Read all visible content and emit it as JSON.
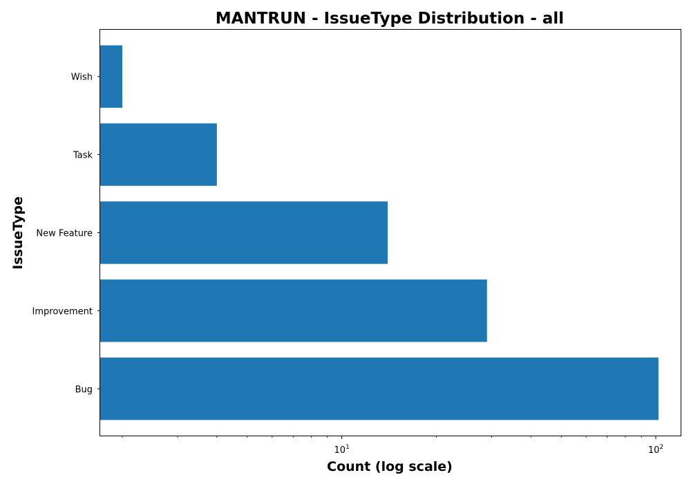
{
  "chart_data": {
    "type": "bar",
    "orientation": "horizontal",
    "title": "MANTRUN - IssueType Distribution - all",
    "xlabel": "Count (log scale)",
    "ylabel": "IssueType",
    "x_scale": "log",
    "xlim": [
      1.7,
      120
    ],
    "x_ticks": [
      {
        "base": "10",
        "exp": "1",
        "value": 10
      },
      {
        "base": "10",
        "exp": "2",
        "value": 100
      }
    ],
    "categories": [
      "Bug",
      "Improvement",
      "New Feature",
      "Task",
      "Wish"
    ],
    "values": [
      102,
      29,
      14,
      4,
      2
    ],
    "bar_color": "#1f77b4",
    "grid": false,
    "legend": "none"
  }
}
